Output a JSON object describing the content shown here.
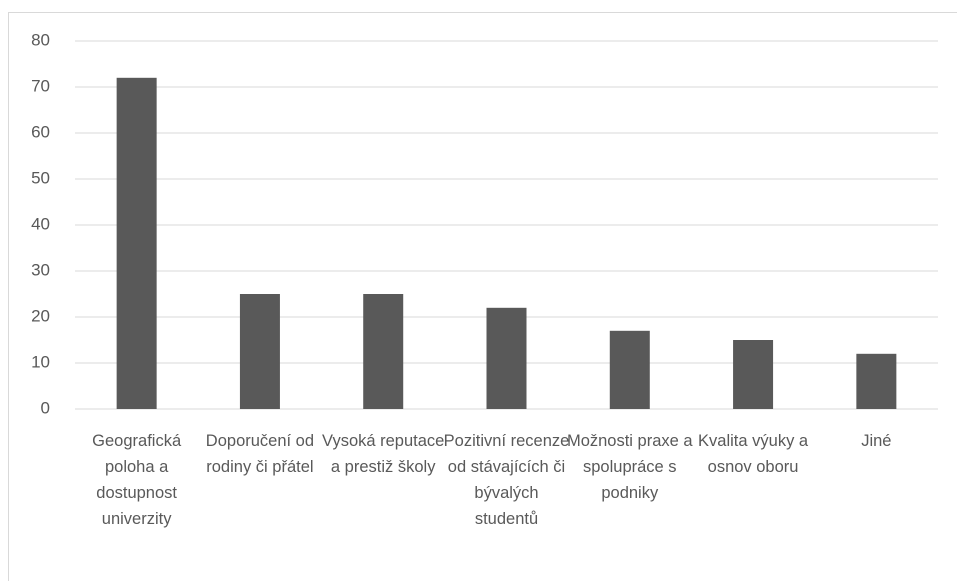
{
  "chart_data": {
    "type": "bar",
    "categories": [
      "Geografická poloha a dostupnost univerzity",
      "Doporučení od rodiny či přátel",
      "Vysoká reputace a prestiž školy",
      "Pozitivní recenze od stávajících či bývalých studentů",
      "Možnosti praxe a spolupráce s podniky",
      "Kvalita výuky a osnov oboru",
      "Jiné"
    ],
    "values": [
      72,
      25,
      25,
      22,
      17,
      15,
      12
    ],
    "color": "#595959",
    "ylim": [
      0,
      80
    ],
    "yticks": [
      0,
      10,
      20,
      30,
      40,
      50,
      60,
      70,
      80
    ],
    "grid": true
  }
}
